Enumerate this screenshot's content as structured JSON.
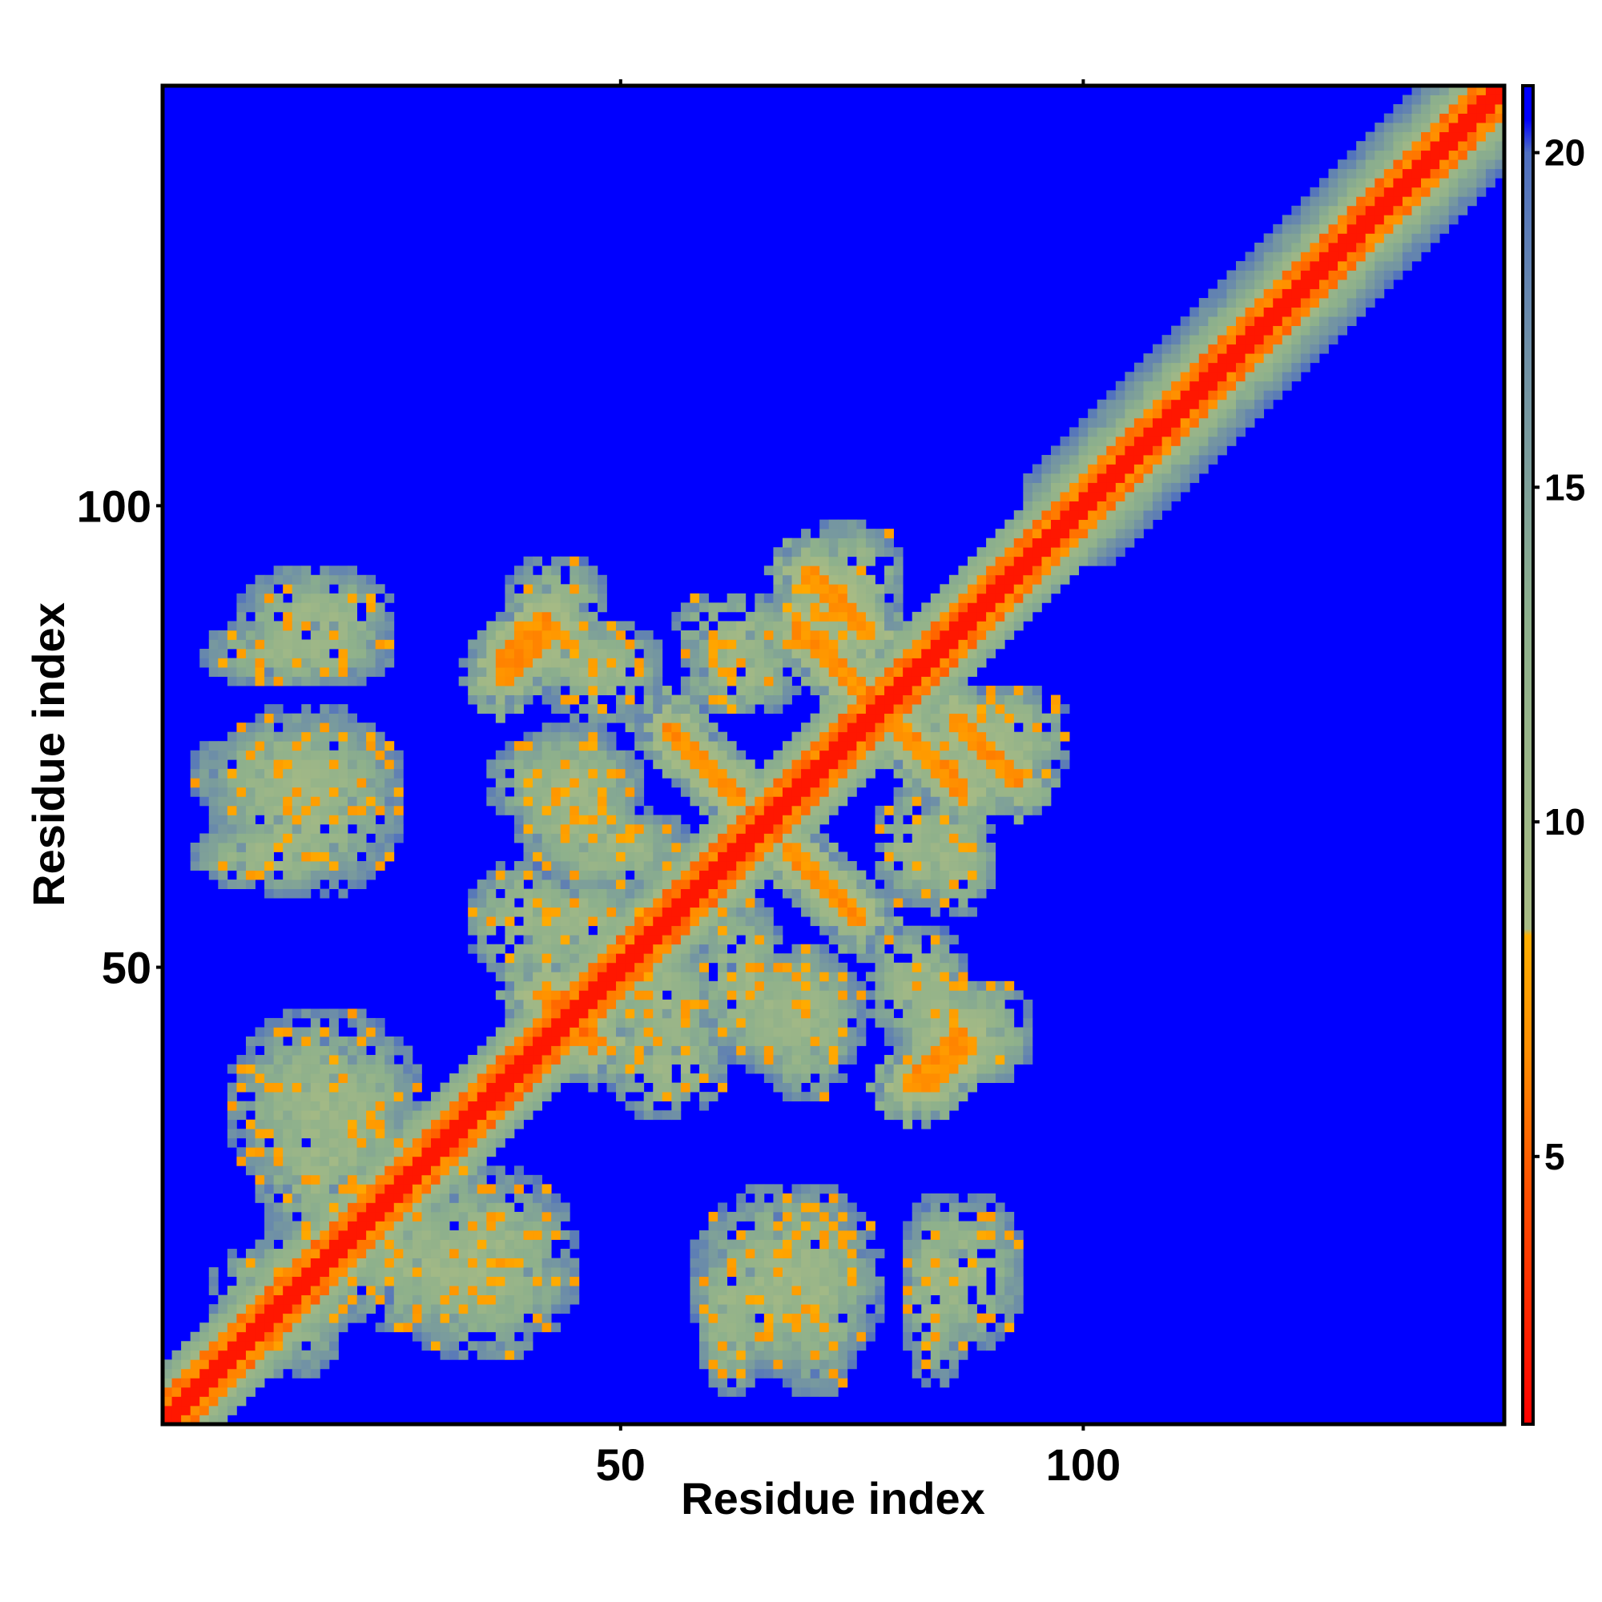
{
  "chart_data": {
    "type": "heatmap",
    "title": "",
    "xlabel": "Residue index",
    "ylabel": "Residue index",
    "n_residues": 145,
    "xlim": [
      1,
      145
    ],
    "ylim": [
      1,
      145
    ],
    "x_ticks": [
      50,
      100
    ],
    "y_ticks": [
      50,
      100
    ],
    "colorbar": {
      "ticks": [
        5,
        10,
        15,
        20
      ],
      "range": [
        1,
        21
      ],
      "stops": [
        {
          "value": 1,
          "color": "#ff0000"
        },
        {
          "value": 4.5,
          "color": "#ff5000"
        },
        {
          "value": 6.5,
          "color": "#ff8c00"
        },
        {
          "value": 8.3,
          "color": "#ffae00"
        },
        {
          "value": 8.4,
          "color": "#a8bb84"
        },
        {
          "value": 13,
          "color": "#8db08c"
        },
        {
          "value": 17,
          "color": "#6f90a6"
        },
        {
          "value": 20,
          "color": "#4f6fc0"
        },
        {
          "value": 20.5,
          "color": "#0000ff"
        },
        {
          "value": 21,
          "color": "#0000ff"
        }
      ]
    },
    "background_color": "#0000ff",
    "diagonal_band": {
      "core": 1.2,
      "near": 3.5,
      "halo": 6.5,
      "wide_halo_from": 93,
      "wide_halo": 9
    },
    "contact_segments": [
      {
        "from": [
          59,
          60
        ],
        "to": [
          66,
          67
        ],
        "from2": [
          66,
          67
        ],
        "to2": [
          59,
          60
        ]
      },
      {
        "from": [
          55,
          76
        ],
        "to": [
          63,
          68
        ]
      },
      {
        "from": [
          70,
          93
        ],
        "to": [
          77,
          86
        ]
      },
      {
        "from": [
          80,
          76
        ],
        "to": [
          87,
          69
        ]
      },
      {
        "from": [
          37,
          81
        ],
        "to": [
          43,
          87
        ]
      },
      {
        "from": [
          41,
          47
        ],
        "to": [
          48,
          42
        ]
      },
      {
        "from": [
          83,
          37
        ],
        "to": [
          88,
          42
        ]
      }
    ],
    "contact_blobs": [
      {
        "center": [
          15,
          84
        ],
        "size": [
          22,
          8
        ]
      },
      {
        "center": [
          15,
          71
        ],
        "size": [
          24,
          12
        ]
      },
      {
        "center": [
          12,
          62
        ],
        "size": [
          18,
          8
        ]
      },
      {
        "center": [
          44,
          84
        ],
        "size": [
          16,
          8
        ]
      },
      {
        "center": [
          44,
          70
        ],
        "size": [
          18,
          12
        ]
      },
      {
        "center": [
          49,
          63
        ],
        "size": [
          18,
          10
        ]
      },
      {
        "center": [
          63,
          82
        ],
        "size": [
          14,
          10
        ]
      },
      {
        "center": [
          71,
          88
        ],
        "size": [
          10,
          10
        ]
      },
      {
        "center": [
          92,
          75
        ],
        "size": [
          14,
          12
        ]
      },
      {
        "center": [
          86,
          62
        ],
        "size": [
          10,
          14
        ]
      },
      {
        "center": [
          82,
          48
        ],
        "size": [
          12,
          14
        ]
      },
      {
        "center": [
          89,
          43
        ],
        "size": [
          12,
          12
        ]
      },
      {
        "center": [
          68,
          45
        ],
        "size": [
          18,
          14
        ]
      },
      {
        "center": [
          18,
          35
        ],
        "size": [
          22,
          22
        ]
      },
      {
        "center": [
          30,
          18
        ],
        "size": [
          26,
          16
        ]
      },
      {
        "center": [
          14,
          15
        ],
        "size": [
          18,
          12
        ]
      },
      {
        "center": [
          68,
          16
        ],
        "size": [
          22,
          22
        ]
      },
      {
        "center": [
          87,
          17
        ],
        "size": [
          14,
          18
        ]
      },
      {
        "center": [
          55,
          40
        ],
        "size": [
          14,
          14
        ]
      },
      {
        "center": [
          46,
          55
        ],
        "size": [
          14,
          10
        ]
      }
    ]
  }
}
